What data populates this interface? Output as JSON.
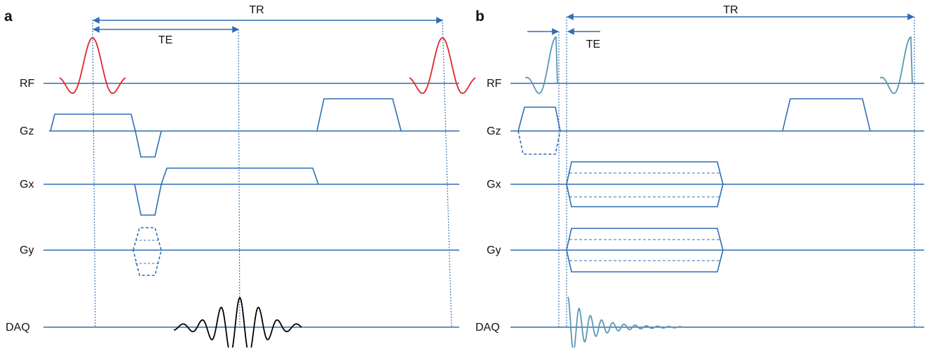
{
  "panels": [
    {
      "letter": "a",
      "channels": [
        "RF",
        "Gz",
        "Gx",
        "Gy",
        "DAQ"
      ],
      "intervals": {
        "tr": "TR",
        "te": "TE"
      }
    },
    {
      "letter": "b",
      "channels": [
        "RF",
        "Gz",
        "Gx",
        "Gy",
        "DAQ"
      ],
      "intervals": {
        "tr": "TR",
        "te": "TE"
      }
    }
  ],
  "colors": {
    "axis": "#2f6db5",
    "rf_pulse_a": "#e0252b",
    "rf_pulse_b": "#5a97b4",
    "daq_signal_a": "#000000",
    "daq_signal_b": "#5a97b4",
    "text": "#111111"
  }
}
